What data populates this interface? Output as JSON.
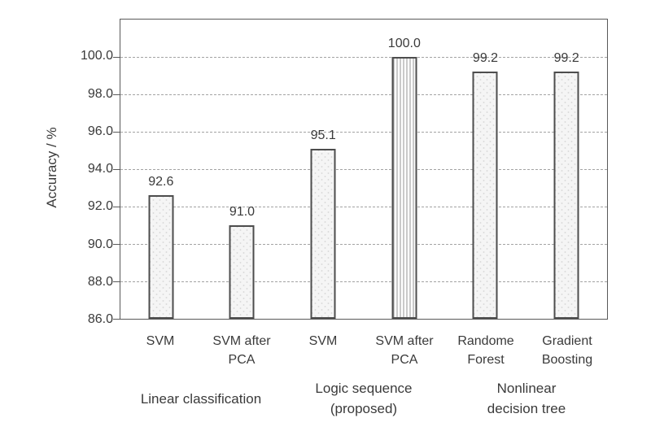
{
  "chart_data": {
    "type": "bar",
    "title": "",
    "xlabel": "",
    "ylabel": "Accuracy / %",
    "ylim": [
      86,
      102
    ],
    "ymajor_unit": 2,
    "yticks": [
      "100.0",
      "98.0",
      "96.0",
      "94.0",
      "92.0",
      "90.0",
      "88.0",
      "86.0"
    ],
    "grid": "horizontal-dashed",
    "legend": "none",
    "categories": [
      "SVM",
      "SVM after PCA",
      "SVM",
      "SVM after PCA",
      "Randome Forest",
      "Gradient Boosting"
    ],
    "values": [
      92.6,
      91.0,
      95.1,
      100.0,
      99.2,
      99.2
    ],
    "value_labels": [
      "92.6",
      "91.0",
      "95.1",
      "100.0",
      "99.2",
      "99.2"
    ],
    "bar_styles": [
      "dotted-fill",
      "dotted-fill",
      "dotted-fill",
      "vertical-hatch",
      "dotted-fill",
      "dotted-fill"
    ],
    "groups": [
      {
        "label": "Linear classification",
        "categories": [
          "SVM",
          "SVM after PCA"
        ]
      },
      {
        "label": "Logic sequence (proposed)",
        "categories": [
          "SVM",
          "SVM after PCA"
        ]
      },
      {
        "label": "Nonlinear decision tree",
        "categories": [
          "Randome Forest",
          "Gradient Boosting"
        ]
      }
    ],
    "colors": {
      "background": "#ffffff",
      "bar_fill": "#f5f5f5",
      "bar_border": "#4d4d4d",
      "hatch_line": "#969696",
      "gridline": "#a3a3a3",
      "axis_line": "#595959",
      "text": "#3a3a3a"
    }
  }
}
